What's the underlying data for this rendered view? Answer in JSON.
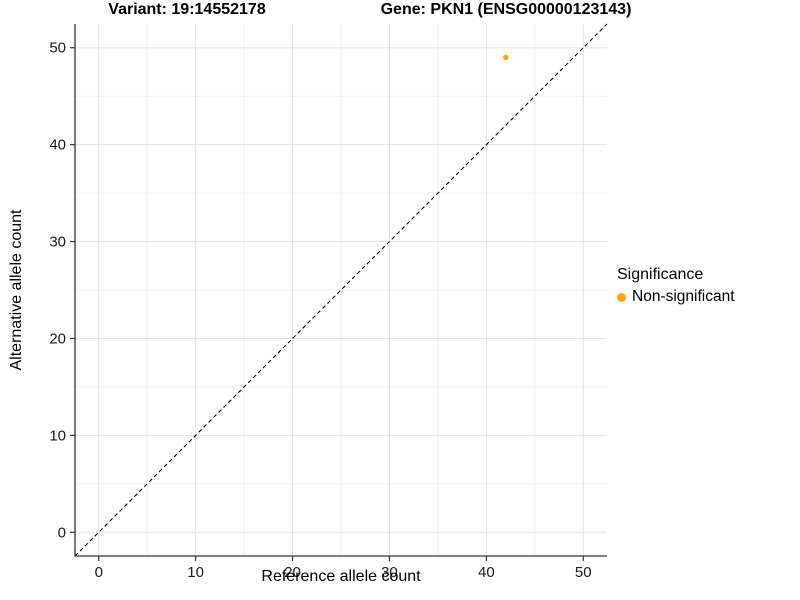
{
  "chart_data": {
    "type": "scatter",
    "titles": {
      "variant": "Variant: 19:14552178",
      "gene": "Gene: PKN1 (ENSG00000123143)"
    },
    "xlabel": "Reference allele count",
    "ylabel": "Alternative allele count",
    "xlim": [
      -2.45,
      52.45
    ],
    "ylim": [
      -2.45,
      52.45
    ],
    "xticks": [
      0,
      10,
      20,
      30,
      40,
      50
    ],
    "yticks": [
      0,
      10,
      20,
      30,
      40,
      50
    ],
    "minor_xticks": [
      5,
      15,
      25,
      35,
      45
    ],
    "minor_yticks": [
      5,
      15,
      25,
      35,
      45
    ],
    "grid": true,
    "legend_title": "Significance",
    "legend_position": "right",
    "series": [
      {
        "name": "Non-significant",
        "color": "#FFA500",
        "points": [
          {
            "x": 42,
            "y": 49
          }
        ]
      }
    ],
    "identity_line": {
      "slope": 1,
      "intercept": 0,
      "style": "dashed"
    },
    "colors": {
      "point": "#FFA500",
      "axis": "#333333",
      "grid_major": "#E4E4E4",
      "grid_minor": "#F1F1F1",
      "identity_line": "#000000",
      "background": "#FFFFFF"
    }
  }
}
